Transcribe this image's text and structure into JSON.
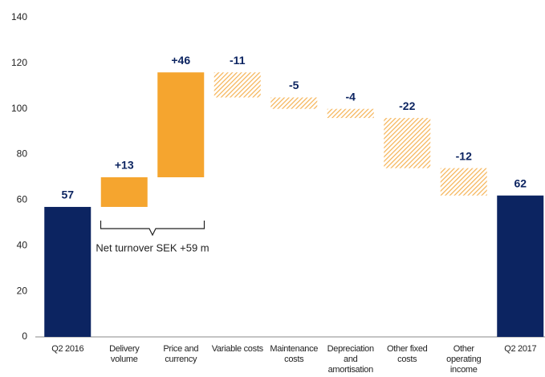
{
  "chart_data": {
    "type": "waterfall",
    "categories": [
      "Q2 2016",
      "Delivery volume",
      "Price and currency",
      "Variable costs",
      "Maintenance costs",
      "Depreciation and amortisation",
      "Other fixed costs",
      "Other operating income",
      "Q2 2017"
    ],
    "values": [
      57,
      13,
      46,
      -11,
      -5,
      -4,
      -22,
      -12,
      62
    ],
    "value_labels": [
      "57",
      "+13",
      "+46",
      "-11",
      "-5",
      "-4",
      "-22",
      "-12",
      "62"
    ],
    "colors": [
      "#0c2461",
      "#f5a52f",
      "#f5a52f",
      "#f5b253",
      "#f5b253",
      "#f5b253",
      "#f5b253",
      "#f5b253",
      "#0c2461"
    ],
    "ylim": [
      0,
      140
    ],
    "yticks": [
      0,
      20,
      40,
      60,
      80,
      100,
      120,
      140
    ],
    "grid": false,
    "annotations": [
      "Net turnover SEK +59 m"
    ]
  }
}
